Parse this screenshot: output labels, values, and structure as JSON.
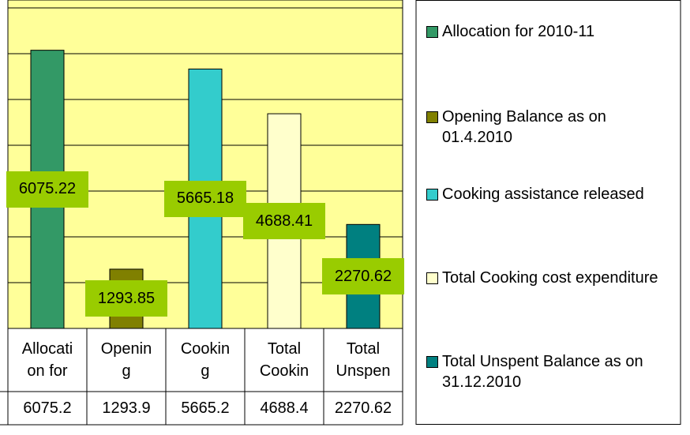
{
  "chart_data": {
    "type": "bar",
    "categories": [
      "Allocati\non for",
      "Openin\ng",
      "Cookin\ng",
      "Total\nCookin",
      "Total\nUnspen"
    ],
    "series": [
      {
        "name": "Allocation for 2010-11",
        "color": "#339966"
      },
      {
        "name": "Opening Balance as on 01.4.2010",
        "color": "#808000"
      },
      {
        "name": "Cooking assistance released",
        "color": "#33cccc"
      },
      {
        "name": "Total Cooking cost expenditure",
        "color": "#ffffcc"
      },
      {
        "name": "Total Unspent Balance as on 31.12.2010",
        "color": "#008080"
      }
    ],
    "values": [
      6075.22,
      1293.85,
      5665.18,
      4688.41,
      2270.62
    ],
    "value_labels": [
      "6075.2",
      "1293.9",
      "5665.2",
      "4688.4",
      "2270.62"
    ],
    "ylim": [
      0,
      7000
    ],
    "yticks": [
      0,
      1000,
      2000,
      3000,
      4000,
      5000,
      6000,
      7000
    ],
    "grid": true,
    "plot_background": "#ffff99",
    "data_label_color": "#99cc00",
    "legend": "right"
  }
}
